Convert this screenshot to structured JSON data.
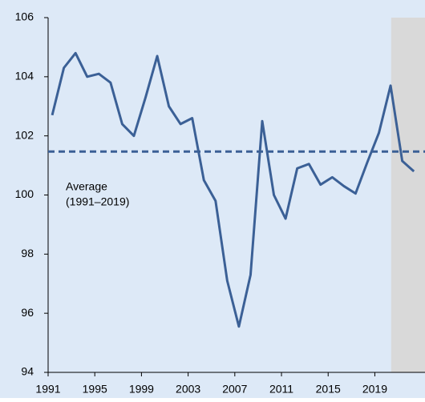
{
  "chart_data": {
    "type": "line",
    "annotation": [
      "Average",
      "(1991–2019)"
    ],
    "x": [
      1991.35,
      1992.35,
      1993.35,
      1994.35,
      1995.35,
      1996.35,
      1997.35,
      1998.35,
      1999.35,
      2000.35,
      2001.35,
      2002.35,
      2003.35,
      2004.35,
      2005.35,
      2006.35,
      2007.35,
      2008.35,
      2009.35,
      2010.35,
      2011.35,
      2012.35,
      2013.35,
      2014.35,
      2015.35,
      2016.35,
      2017.35,
      2018.35,
      2019.35,
      2020.35,
      2021.35,
      2022.35
    ],
    "series": [
      {
        "color": "#3b6096",
        "values": [
          102.7,
          104.3,
          104.8,
          104.0,
          104.1,
          103.8,
          102.4,
          102.0,
          103.3,
          104.7,
          103.0,
          102.4,
          102.6,
          100.5,
          99.8,
          97.1,
          95.55,
          97.3,
          102.5,
          100.0,
          99.2,
          100.9,
          101.05,
          100.35,
          100.6,
          100.3,
          100.05,
          101.1,
          102.1,
          103.7,
          101.15,
          100.8
        ]
      }
    ],
    "average": 101.47,
    "average_color": "#3b6096",
    "shade_xrange": [
      2020.4,
      2023.3
    ],
    "shade_color": "#d9d9d9",
    "background": "#dde9f7",
    "xlim": [
      1991,
      2023.3
    ],
    "ylim": [
      94,
      106
    ],
    "xticks": [
      1991,
      1995,
      1999,
      2003,
      2007,
      2011,
      2015,
      2019
    ],
    "yticks": [
      94,
      96,
      98,
      100,
      102,
      104,
      106
    ]
  }
}
